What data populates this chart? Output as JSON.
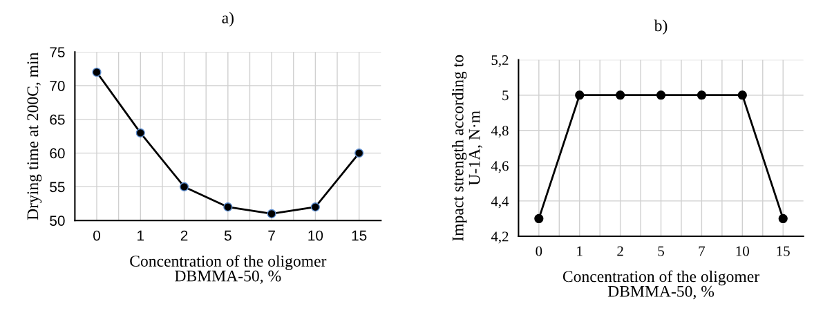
{
  "chart_data": [
    {
      "type": "line",
      "title": "a)",
      "xlabel": "Concentration of the oligomer\nDBMMA-50, %",
      "ylabel": "Drying time at 200C, min",
      "categories": [
        "0",
        "1",
        "2",
        "5",
        "7",
        "10",
        "15"
      ],
      "series": [
        {
          "color": "#000000",
          "values": [
            72,
            63,
            55,
            52,
            51,
            52,
            60
          ]
        }
      ],
      "ylim": [
        50,
        75
      ],
      "yticks": [
        50,
        55,
        60,
        65,
        70,
        75
      ],
      "grid": true,
      "marker": "circle",
      "line_style": "solid"
    },
    {
      "type": "line",
      "title": "b)",
      "xlabel": "Concentration of the oligomer\nDBMMA-50, %",
      "ylabel": "Impact strength according to\nU-1A, N·m",
      "categories": [
        "0",
        "1",
        "2",
        "5",
        "7",
        "10",
        "15"
      ],
      "series": [
        {
          "color": "#000000",
          "values": [
            4.3,
            5,
            5,
            5,
            5,
            5,
            4.3
          ]
        }
      ],
      "ylim": [
        4.2,
        5.2
      ],
      "yticks": [
        {
          "value": 4.2,
          "label": "4,2"
        },
        {
          "value": 4.4,
          "label": "4,4"
        },
        {
          "value": 4.6,
          "label": "4,6"
        },
        {
          "value": 4.8,
          "label": "4,8"
        },
        {
          "value": 5,
          "label": "5"
        },
        {
          "value": 5.2,
          "label": "5,2"
        }
      ],
      "grid": true,
      "marker": "circle",
      "line_style": "solid"
    }
  ]
}
